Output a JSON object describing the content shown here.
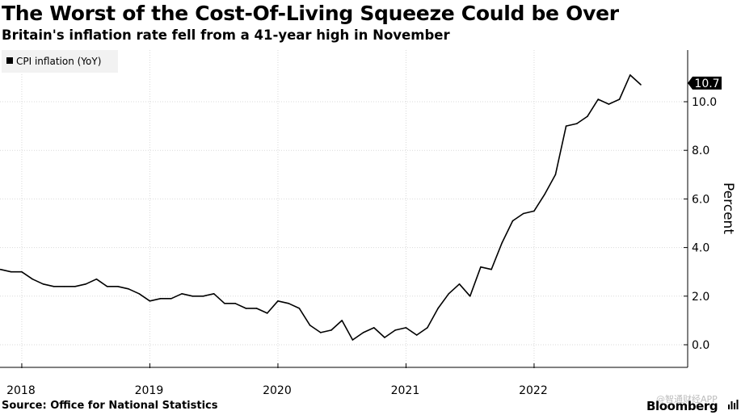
{
  "title": "The Worst of the Cost-Of-Living Squeeze Could be Over",
  "subtitle": "Britain's inflation rate fell from a 41-year high in November",
  "source": "Source: Office for National Statistics",
  "brand": "Bloomberg",
  "watermark": "@智通财经APP",
  "colors": {
    "line": "#000000",
    "grid": "#d9d9d9",
    "axis": "#000000",
    "legend_bg": "#f2f2f2",
    "label_bg": "#000000",
    "label_text": "#ffffff"
  },
  "chart_data": {
    "type": "line",
    "title": "The Worst of the Cost-Of-Living Squeeze Could be Over",
    "subtitle": "Britain's inflation rate fell from a 41-year high in November",
    "xlabel": "",
    "ylabel": "Percent",
    "ylim": [
      0,
      11
    ],
    "y_ticks": [
      0,
      2,
      4,
      6,
      8,
      10
    ],
    "y_tick_labels": [
      "0.0",
      "2.0",
      "4.0",
      "6.0",
      "8.0",
      "10.0"
    ],
    "x_tick_labels": [
      "2018",
      "2019",
      "2020",
      "2021",
      "2022"
    ],
    "legend": {
      "entries": [
        "CPI inflation (YoY)"
      ],
      "position": "top-left"
    },
    "grid": true,
    "y_axis_side": "right",
    "last_value_label": "10.7",
    "series": [
      {
        "name": "CPI inflation (YoY)",
        "x": [
          "2017-11",
          "2017-12",
          "2018-01",
          "2018-02",
          "2018-03",
          "2018-04",
          "2018-05",
          "2018-06",
          "2018-07",
          "2018-08",
          "2018-09",
          "2018-10",
          "2018-11",
          "2018-12",
          "2019-01",
          "2019-02",
          "2019-03",
          "2019-04",
          "2019-05",
          "2019-06",
          "2019-07",
          "2019-08",
          "2019-09",
          "2019-10",
          "2019-11",
          "2019-12",
          "2020-01",
          "2020-02",
          "2020-03",
          "2020-04",
          "2020-05",
          "2020-06",
          "2020-07",
          "2020-08",
          "2020-09",
          "2020-10",
          "2020-11",
          "2020-12",
          "2021-01",
          "2021-02",
          "2021-03",
          "2021-04",
          "2021-05",
          "2021-06",
          "2021-07",
          "2021-08",
          "2021-09",
          "2021-10",
          "2021-11",
          "2021-12",
          "2022-01",
          "2022-02",
          "2022-03",
          "2022-04",
          "2022-05",
          "2022-06",
          "2022-07",
          "2022-08",
          "2022-09",
          "2022-10",
          "2022-11"
        ],
        "values": [
          3.1,
          3.0,
          3.0,
          2.7,
          2.5,
          2.4,
          2.4,
          2.4,
          2.5,
          2.7,
          2.4,
          2.4,
          2.3,
          2.1,
          1.8,
          1.9,
          1.9,
          2.1,
          2.0,
          2.0,
          2.1,
          1.7,
          1.7,
          1.5,
          1.5,
          1.3,
          1.8,
          1.7,
          1.5,
          0.8,
          0.5,
          0.6,
          1.0,
          0.2,
          0.5,
          0.7,
          0.3,
          0.6,
          0.7,
          0.4,
          0.7,
          1.5,
          2.1,
          2.5,
          2.0,
          3.2,
          3.1,
          4.2,
          5.1,
          5.4,
          5.5,
          6.2,
          7.0,
          9.0,
          9.1,
          9.4,
          10.1,
          9.9,
          10.1,
          11.1,
          10.7
        ]
      }
    ]
  }
}
